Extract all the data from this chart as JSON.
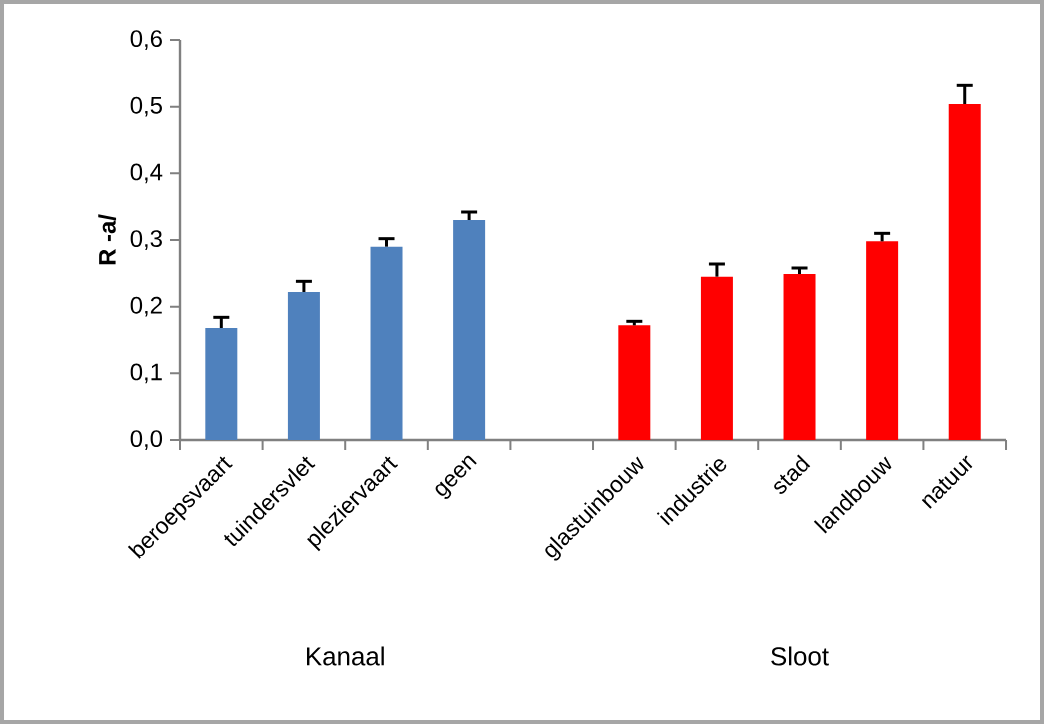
{
  "chart_data": {
    "type": "bar",
    "categories": [
      "beroepsvaart",
      "tuindersvlet",
      "pleziervaart",
      "geen",
      null,
      "glastuinbouw",
      "industrie",
      "stad",
      "landbouw",
      "natuur"
    ],
    "values": [
      0.168,
      0.222,
      0.29,
      0.33,
      null,
      0.172,
      0.245,
      0.249,
      0.298,
      0.504
    ],
    "colors": [
      "#4f81bd",
      "#4f81bd",
      "#4f81bd",
      "#4f81bd",
      null,
      "#ff0000",
      "#ff0000",
      "#ff0000",
      "#ff0000",
      "#ff0000"
    ],
    "errors": [
      [
        0.168,
        0.184
      ],
      [
        0.222,
        0.238
      ],
      [
        0.29,
        0.302
      ],
      [
        0.33,
        0.342
      ],
      null,
      [
        0.172,
        0.178
      ],
      [
        0.245,
        0.264
      ],
      [
        0.249,
        0.258
      ],
      [
        0.298,
        0.31
      ],
      [
        0.504,
        0.532
      ]
    ],
    "annotations": [
      "Kanaal",
      "Sloot"
    ],
    "ylim": [
      0,
      0.6
    ],
    "yticks": [
      {
        "value": 0,
        "label": "0,0"
      },
      {
        "value": 0.1,
        "label": "0,1"
      },
      {
        "value": 0.2,
        "label": "0,2"
      },
      {
        "value": 0.3,
        "label": "0,3"
      },
      {
        "value": 0.4,
        "label": "0,4"
      },
      {
        "value": 0.5,
        "label": "0,5"
      },
      {
        "value": 0.6,
        "label": "0,6"
      }
    ],
    "ylabel": "R -a/"
  }
}
